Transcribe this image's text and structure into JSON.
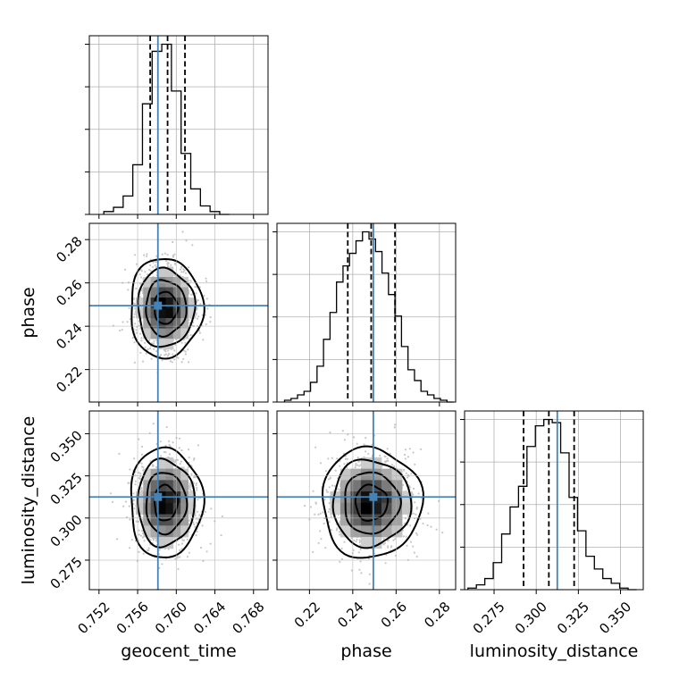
{
  "chart_data": {
    "type": "corner",
    "parameters": [
      {
        "name": "geocent_time",
        "label": "geocent_time",
        "range": [
          0.751,
          0.7695
        ],
        "ticks": [
          0.752,
          0.756,
          0.76,
          0.764,
          0.768
        ],
        "tick_labels": [
          "0.752",
          "0.756",
          "0.760",
          "0.764",
          "0.768"
        ],
        "truth": 0.7581,
        "quantiles": [
          0.7573,
          0.7591,
          0.7609
        ]
      },
      {
        "name": "phase",
        "label": "phase",
        "range": [
          0.205,
          0.2875
        ],
        "ticks": [
          0.22,
          0.24,
          0.26,
          0.28
        ],
        "tick_labels": [
          "0.22",
          "0.24",
          "0.26",
          "0.28"
        ],
        "truth": 0.2495,
        "quantiles": [
          0.2377,
          0.2485,
          0.2595
        ]
      },
      {
        "name": "luminosity_distance",
        "label": "luminosity_distance",
        "range": [
          0.2575,
          0.3635
        ],
        "ticks": [
          0.275,
          0.3,
          0.325,
          0.35
        ],
        "tick_labels": [
          "0.275",
          "0.300",
          "0.325",
          "0.350"
        ],
        "truth": 0.3125,
        "quantiles": [
          0.2925,
          0.3075,
          0.3225
        ]
      }
    ],
    "marginals": [
      {
        "edges": [
          0.7525,
          0.7535,
          0.7545,
          0.7555,
          0.7565,
          0.7575,
          0.7585,
          0.7595,
          0.7605,
          0.7615,
          0.7625,
          0.7635,
          0.7645,
          0.7655
        ],
        "counts": [
          2,
          5,
          13,
          35,
          78,
          115,
          120,
          87,
          43,
          18,
          6,
          2,
          0
        ]
      },
      {
        "edges": [
          0.2085,
          0.2115,
          0.2145,
          0.2175,
          0.2205,
          0.2235,
          0.2265,
          0.2295,
          0.2325,
          0.2355,
          0.2385,
          0.2415,
          0.2445,
          0.2475,
          0.2505,
          0.2535,
          0.2565,
          0.2595,
          0.2625,
          0.2655,
          0.2685,
          0.2715,
          0.2745,
          0.2775,
          0.2805,
          0.2835,
          0.2865
        ],
        "counts": [
          1,
          2,
          4,
          6,
          11,
          20,
          35,
          50,
          67,
          76,
          83,
          90,
          95,
          91,
          84,
          72,
          60,
          48,
          31,
          18,
          12,
          6,
          4,
          2,
          1,
          0
        ]
      },
      {
        "edges": [
          0.2595,
          0.2645,
          0.2695,
          0.2745,
          0.2795,
          0.2845,
          0.2895,
          0.2945,
          0.2995,
          0.3045,
          0.3095,
          0.3145,
          0.3195,
          0.3245,
          0.3295,
          0.3345,
          0.3395,
          0.3445,
          0.3495,
          0.3545,
          0.3595
        ],
        "counts": [
          1,
          3,
          7,
          17,
          35,
          52,
          65,
          90,
          103,
          107,
          105,
          86,
          58,
          37,
          21,
          13,
          7,
          4,
          1,
          0
        ]
      }
    ],
    "joint": [
      {
        "x": "geocent_time",
        "y": "phase",
        "center": [
          0.7589,
          0.2485
        ],
        "sd": [
          0.00155,
          0.0095
        ],
        "truth": [
          0.7581,
          0.2495
        ]
      },
      {
        "x": "geocent_time",
        "y": "luminosity_distance",
        "center": [
          0.7589,
          0.309
        ],
        "sd": [
          0.00155,
          0.0135
        ],
        "truth": [
          0.7581,
          0.3125
        ]
      },
      {
        "x": "phase",
        "y": "luminosity_distance",
        "center": [
          0.2485,
          0.309
        ],
        "sd": [
          0.0095,
          0.0135
        ],
        "truth": [
          0.2495,
          0.3125
        ]
      }
    ],
    "colors": {
      "truth": "#4682b4",
      "hist": "#000000",
      "quantile": "#000000",
      "grid": "#b0b0b0"
    },
    "grid": true
  }
}
